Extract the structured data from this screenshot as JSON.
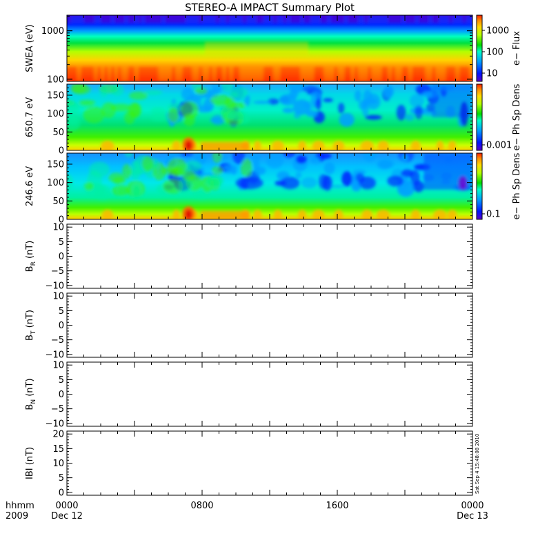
{
  "title": "STEREO-A IMPACT Summary Plot",
  "x_axis": {
    "row1_label": "hhmm",
    "row2_label": "2009",
    "ticks": [
      {
        "hour": 0,
        "label": "0000",
        "date": "Dec 12"
      },
      {
        "hour": 8,
        "label": "0800",
        "date": ""
      },
      {
        "hour": 16,
        "label": "1600",
        "date": ""
      },
      {
        "hour": 24,
        "label": "0000",
        "date": "Dec 13"
      }
    ],
    "range_hours": [
      0,
      24
    ]
  },
  "timestamp": "Sat Sep  4 15:48:08 2010",
  "colors": {
    "palette": [
      "#5a00c8",
      "#0014ff",
      "#0096ff",
      "#00ffc8",
      "#00dc00",
      "#b4ff00",
      "#ffdc00",
      "#ff8c00",
      "#ff1e00",
      "#c80000"
    ]
  },
  "chart_data": [
    {
      "type": "heatmap",
      "ylabel": "SWEA (eV)",
      "yscale": "log",
      "ylim": [
        90,
        2100
      ],
      "yticks": [
        100,
        1000
      ],
      "ytick_labels": [
        "100",
        "1000"
      ],
      "colorbar_label": "e− Flux",
      "colorbar_scale": "log",
      "colorbar_ticks": [
        "1000",
        "100",
        "10"
      ]
    },
    {
      "type": "heatmap",
      "ylabel": "650.7 eV",
      "ylim": [
        0,
        180
      ],
      "yticks": [
        0,
        50,
        100,
        150
      ],
      "ytick_labels": [
        "0",
        "50",
        "100",
        "150"
      ],
      "colorbar_label": "e− Ph Sp Dens",
      "colorbar_scale": "log",
      "colorbar_ticks": [
        "0.001"
      ]
    },
    {
      "type": "heatmap",
      "ylabel": "246.6 eV",
      "ylim": [
        0,
        180
      ],
      "yticks": [
        0,
        50,
        100,
        150
      ],
      "ytick_labels": [
        "0",
        "50",
        "100",
        "150"
      ],
      "colorbar_label": "e− Ph Sp Dens",
      "colorbar_scale": "log",
      "colorbar_ticks": [
        "0.1"
      ]
    },
    {
      "type": "line",
      "ylabel": "B",
      "ylabel_sub": "R",
      "ylabel_unit": "(nT)",
      "ylim": [
        -11,
        11
      ],
      "yticks": [
        -10,
        -5,
        0,
        5,
        10
      ],
      "ytick_labels": [
        "−10",
        "−5",
        "0",
        "5",
        "10"
      ],
      "series": []
    },
    {
      "type": "line",
      "ylabel": "B",
      "ylabel_sub": "T",
      "ylabel_unit": "(nT)",
      "ylim": [
        -11,
        11
      ],
      "yticks": [
        -10,
        -5,
        0,
        5,
        10
      ],
      "ytick_labels": [
        "−10",
        "−5",
        "0",
        "5",
        "10"
      ],
      "series": []
    },
    {
      "type": "line",
      "ylabel": "B",
      "ylabel_sub": "N",
      "ylabel_unit": "(nT)",
      "ylim": [
        -11,
        11
      ],
      "yticks": [
        -10,
        -5,
        0,
        5,
        10
      ],
      "ytick_labels": [
        "−10",
        "−5",
        "0",
        "5",
        "10"
      ],
      "series": []
    },
    {
      "type": "line",
      "ylabel": "IBI (nT)",
      "ylim": [
        -1,
        21
      ],
      "yticks": [
        0,
        5,
        10,
        15,
        20
      ],
      "ytick_labels": [
        "0",
        "5",
        "10",
        "15",
        "20"
      ],
      "series": []
    }
  ]
}
